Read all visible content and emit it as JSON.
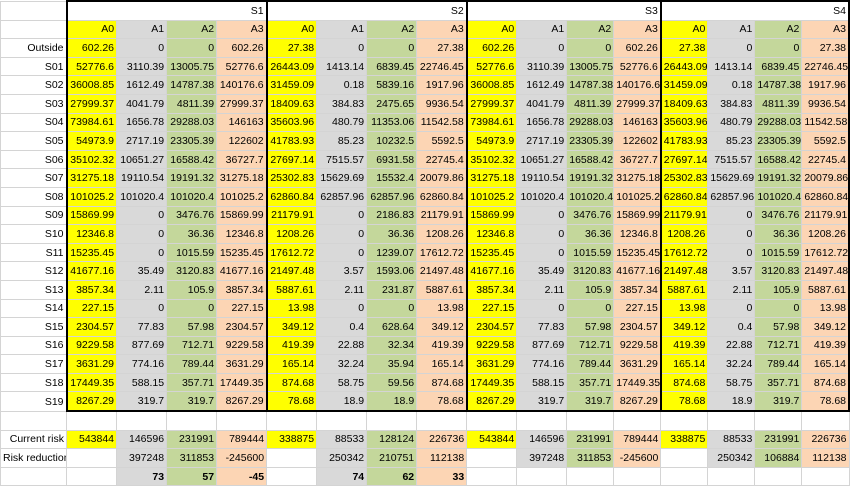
{
  "groups": [
    "S1",
    "S2",
    "S3",
    "S4"
  ],
  "subheaders": [
    "A0",
    "A1",
    "A2",
    "A3"
  ],
  "rows": [
    {
      "label": "Outside",
      "v": [
        [
          "602.26",
          "0",
          "0",
          "602.26"
        ],
        [
          "27.38",
          "0",
          "0",
          "27.38"
        ],
        [
          "602.26",
          "0",
          "0",
          "602.26"
        ],
        [
          "27.38",
          "0",
          "0",
          "27.38"
        ]
      ]
    },
    {
      "label": "S01",
      "v": [
        [
          "52776.6",
          "3110.39",
          "13005.75",
          "52776.6"
        ],
        [
          "26443.09",
          "1413.14",
          "6839.45",
          "22746.45"
        ],
        [
          "52776.6",
          "3110.39",
          "13005.75",
          "52776.6"
        ],
        [
          "26443.09",
          "1413.14",
          "6839.45",
          "22746.45"
        ]
      ]
    },
    {
      "label": "S02",
      "v": [
        [
          "36008.85",
          "1612.49",
          "14787.38",
          "140176.6"
        ],
        [
          "31459.09",
          "0.18",
          "5839.16",
          "1917.96"
        ],
        [
          "36008.85",
          "1612.49",
          "14787.38",
          "140176.6"
        ],
        [
          "31459.09",
          "0.18",
          "14787.38",
          "1917.96"
        ]
      ]
    },
    {
      "label": "S03",
      "v": [
        [
          "27999.37",
          "4041.79",
          "4811.39",
          "27999.37"
        ],
        [
          "18409.63",
          "384.83",
          "2475.65",
          "9936.54"
        ],
        [
          "27999.37",
          "4041.79",
          "4811.39",
          "27999.37"
        ],
        [
          "18409.63",
          "384.83",
          "4811.39",
          "9936.54"
        ]
      ]
    },
    {
      "label": "S04",
      "v": [
        [
          "73984.61",
          "1656.78",
          "29288.03",
          "146163"
        ],
        [
          "35603.96",
          "480.79",
          "11353.06",
          "11542.58"
        ],
        [
          "73984.61",
          "1656.78",
          "29288.03",
          "146163"
        ],
        [
          "35603.96",
          "480.79",
          "29288.03",
          "11542.58"
        ]
      ]
    },
    {
      "label": "S05",
      "v": [
        [
          "54973.9",
          "2717.19",
          "23305.39",
          "122602"
        ],
        [
          "41783.93",
          "85.23",
          "10232.5",
          "5592.5"
        ],
        [
          "54973.9",
          "2717.19",
          "23305.39",
          "122602"
        ],
        [
          "41783.93",
          "85.23",
          "23305.39",
          "5592.5"
        ]
      ]
    },
    {
      "label": "S06",
      "v": [
        [
          "35102.32",
          "10651.27",
          "16588.42",
          "36727.7"
        ],
        [
          "27697.14",
          "7515.57",
          "6931.58",
          "22745.4"
        ],
        [
          "35102.32",
          "10651.27",
          "16588.42",
          "36727.7"
        ],
        [
          "27697.14",
          "7515.57",
          "16588.42",
          "22745.4"
        ]
      ]
    },
    {
      "label": "S07",
      "v": [
        [
          "31275.18",
          "19110.54",
          "19191.32",
          "31275.18"
        ],
        [
          "25302.83",
          "15629.69",
          "15532.4",
          "20079.86"
        ],
        [
          "31275.18",
          "19110.54",
          "19191.32",
          "31275.18"
        ],
        [
          "25302.83",
          "15629.69",
          "19191.32",
          "20079.86"
        ]
      ]
    },
    {
      "label": "S08",
      "v": [
        [
          "101025.2",
          "101020.4",
          "101020.4",
          "101025.2"
        ],
        [
          "62860.84",
          "62857.96",
          "62857.96",
          "62860.84"
        ],
        [
          "101025.2",
          "101020.4",
          "101020.4",
          "101025.2"
        ],
        [
          "62860.84",
          "62857.96",
          "101020.4",
          "62860.84"
        ]
      ]
    },
    {
      "label": "S09",
      "v": [
        [
          "15869.99",
          "0",
          "3476.76",
          "15869.99"
        ],
        [
          "21179.91",
          "0",
          "2186.83",
          "21179.91"
        ],
        [
          "15869.99",
          "0",
          "3476.76",
          "15869.99"
        ],
        [
          "21179.91",
          "0",
          "3476.76",
          "21179.91"
        ]
      ]
    },
    {
      "label": "S10",
      "v": [
        [
          "12346.8",
          "0",
          "36.36",
          "12346.8"
        ],
        [
          "1208.26",
          "0",
          "36.36",
          "1208.26"
        ],
        [
          "12346.8",
          "0",
          "36.36",
          "12346.8"
        ],
        [
          "1208.26",
          "0",
          "36.36",
          "1208.26"
        ]
      ]
    },
    {
      "label": "S11",
      "v": [
        [
          "15235.45",
          "0",
          "1015.59",
          "15235.45"
        ],
        [
          "17612.72",
          "0",
          "1239.07",
          "17612.72"
        ],
        [
          "15235.45",
          "0",
          "1015.59",
          "15235.45"
        ],
        [
          "17612.72",
          "0",
          "1015.59",
          "17612.72"
        ]
      ]
    },
    {
      "label": "S12",
      "v": [
        [
          "41677.16",
          "35.49",
          "3120.83",
          "41677.16"
        ],
        [
          "21497.48",
          "3.57",
          "1593.06",
          "21497.48"
        ],
        [
          "41677.16",
          "35.49",
          "3120.83",
          "41677.16"
        ],
        [
          "21497.48",
          "3.57",
          "3120.83",
          "21497.48"
        ]
      ]
    },
    {
      "label": "S13",
      "v": [
        [
          "3857.34",
          "2.11",
          "105.9",
          "3857.34"
        ],
        [
          "5887.61",
          "2.11",
          "231.87",
          "5887.61"
        ],
        [
          "3857.34",
          "2.11",
          "105.9",
          "3857.34"
        ],
        [
          "5887.61",
          "2.11",
          "105.9",
          "5887.61"
        ]
      ]
    },
    {
      "label": "S14",
      "v": [
        [
          "227.15",
          "0",
          "0",
          "227.15"
        ],
        [
          "13.98",
          "0",
          "0",
          "13.98"
        ],
        [
          "227.15",
          "0",
          "0",
          "227.15"
        ],
        [
          "13.98",
          "0",
          "0",
          "13.98"
        ]
      ]
    },
    {
      "label": "S15",
      "v": [
        [
          "2304.57",
          "77.83",
          "57.98",
          "2304.57"
        ],
        [
          "349.12",
          "0.4",
          "628.64",
          "349.12"
        ],
        [
          "2304.57",
          "77.83",
          "57.98",
          "2304.57"
        ],
        [
          "349.12",
          "0.4",
          "57.98",
          "349.12"
        ]
      ]
    },
    {
      "label": "S16",
      "v": [
        [
          "9229.58",
          "877.69",
          "712.71",
          "9229.58"
        ],
        [
          "419.39",
          "22.88",
          "32.34",
          "419.39"
        ],
        [
          "9229.58",
          "877.69",
          "712.71",
          "9229.58"
        ],
        [
          "419.39",
          "22.88",
          "712.71",
          "419.39"
        ]
      ]
    },
    {
      "label": "S17",
      "v": [
        [
          "3631.29",
          "774.16",
          "789.44",
          "3631.29"
        ],
        [
          "165.14",
          "32.24",
          "35.94",
          "165.14"
        ],
        [
          "3631.29",
          "774.16",
          "789.44",
          "3631.29"
        ],
        [
          "165.14",
          "32.24",
          "789.44",
          "165.14"
        ]
      ]
    },
    {
      "label": "S18",
      "v": [
        [
          "17449.35",
          "588.15",
          "357.71",
          "17449.35"
        ],
        [
          "874.68",
          "58.75",
          "59.56",
          "874.68"
        ],
        [
          "17449.35",
          "588.15",
          "357.71",
          "17449.35"
        ],
        [
          "874.68",
          "58.75",
          "357.71",
          "874.68"
        ]
      ]
    },
    {
      "label": "S19",
      "v": [
        [
          "8267.29",
          "319.7",
          "319.7",
          "8267.29"
        ],
        [
          "78.68",
          "18.9",
          "18.9",
          "78.68"
        ],
        [
          "8267.29",
          "319.7",
          "319.7",
          "8267.29"
        ],
        [
          "78.68",
          "18.9",
          "319.7",
          "78.68"
        ]
      ]
    }
  ],
  "current_risk": {
    "label": "Current risk",
    "v": [
      [
        "543844",
        "146596",
        "231991",
        "789444"
      ],
      [
        "338875",
        "88533",
        "128124",
        "226736"
      ],
      [
        "543844",
        "146596",
        "231991",
        "789444"
      ],
      [
        "338875",
        "88533",
        "231991",
        "226736"
      ]
    ]
  },
  "risk_reduction": {
    "label": "Risk reduction",
    "v": [
      [
        "",
        "397248",
        "311853",
        "-245600"
      ],
      [
        "",
        "250342",
        "210751",
        "112138"
      ],
      [
        "",
        "397248",
        "311853",
        "-245600"
      ],
      [
        "",
        "250342",
        "106884",
        "112138"
      ]
    ]
  },
  "percent_row": {
    "v": [
      [
        "",
        "73",
        "57",
        "-45"
      ],
      [
        "",
        "74",
        "62",
        "33"
      ],
      [
        "",
        "",
        "",
        ""
      ],
      [
        "",
        "",
        "",
        ""
      ]
    ]
  }
}
